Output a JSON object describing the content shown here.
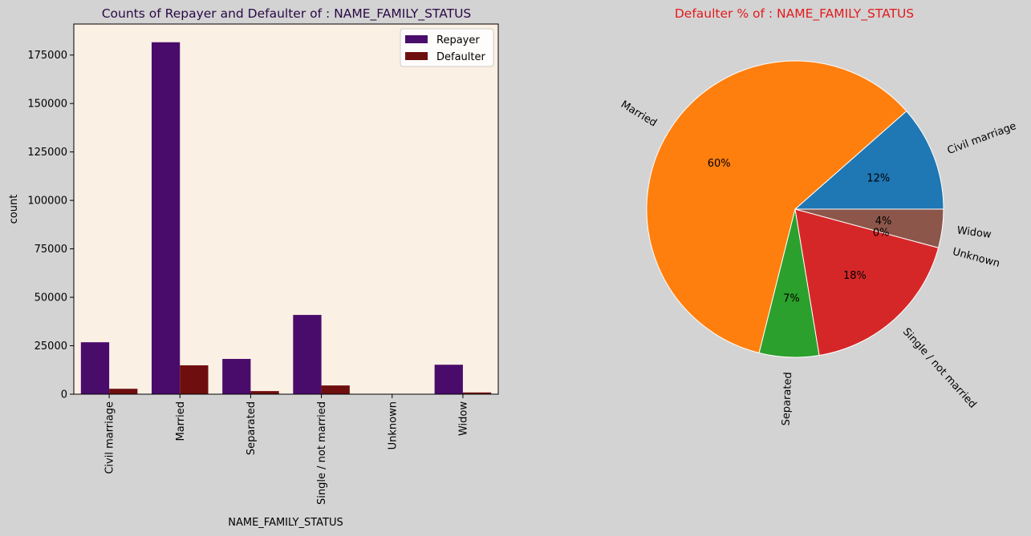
{
  "figure": {
    "background": "#d3d3d3"
  },
  "chart_data": [
    {
      "type": "bar",
      "title": "Counts of Repayer and Defaulter of : NAME_FAMILY_STATUS",
      "title_color": "#2a0845",
      "xlabel": "NAME_FAMILY_STATUS",
      "ylabel": "count",
      "plot_background": "#fbf0e4",
      "categories": [
        "Civil marriage",
        "Married",
        "Separated",
        "Single / not married",
        "Unknown",
        "Widow"
      ],
      "series": [
        {
          "name": "Repayer",
          "color": "#4a0c6b",
          "values": [
            26800,
            181600,
            18200,
            40900,
            2,
            15200
          ]
        },
        {
          "name": "Defaulter",
          "color": "#6f0e0e",
          "values": [
            2800,
            14900,
            1600,
            4500,
            0,
            900
          ]
        }
      ],
      "ylim": [
        0,
        191000
      ],
      "yticks": [
        0,
        25000,
        50000,
        75000,
        100000,
        125000,
        150000,
        175000
      ],
      "ytick_labels": [
        "0",
        "25000",
        "50000",
        "75000",
        "100000",
        "125000",
        "150000",
        "175000"
      ],
      "legend": "top-right",
      "grid": false
    },
    {
      "type": "pie",
      "title": "Defaulter % of : NAME_FAMILY_STATUS",
      "title_color": "#e31a1c",
      "labels": [
        "Civil marriage",
        "Married",
        "Separated",
        "Single / not married",
        "Unknown",
        "Widow"
      ],
      "values": [
        11.5,
        59.6,
        6.5,
        18.2,
        0.0,
        4.2
      ],
      "pct_labels": [
        "12%",
        "60%",
        "7%",
        "18%",
        "0%",
        "4%"
      ],
      "colors": [
        "#1f77b4",
        "#ff7f0e",
        "#2ca02c",
        "#d62728",
        "#9467bd",
        "#8c564b"
      ],
      "rotate_labels": true
    }
  ]
}
